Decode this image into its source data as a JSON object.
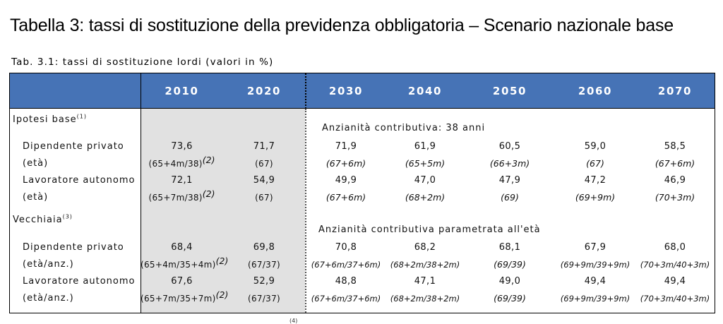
{
  "title": "Tabella 3: tassi di sostituzione della previdenza obbligatoria – Scenario nazionale base",
  "subtitle": "Tab. 3.1: tassi di sostituzione lordi (valori in %)",
  "header": {
    "years": [
      "2010",
      "2020",
      "2030",
      "2040",
      "2050",
      "2060",
      "2070"
    ]
  },
  "sections": [
    {
      "label": "Ipotesi base",
      "label_sup": "(1)",
      "note": "Anzianità contributiva: 38 anni",
      "rows": [
        {
          "label": "Dipendente privato",
          "values": [
            "73,6",
            "71,7",
            "71,9",
            "61,9",
            "60,5",
            "59,0",
            "58,5"
          ]
        },
        {
          "label": "(età)",
          "values": [
            "(65+4m/38)",
            "(67)",
            "(67+6m)",
            "(65+5m)",
            "(66+3m)",
            "(67)",
            "(67+6m)"
          ],
          "sup": "(2)"
        },
        {
          "label": "Lavoratore autonomo",
          "values": [
            "72,1",
            "54,9",
            "49,9",
            "47,0",
            "47,9",
            "47,2",
            "46,9"
          ]
        },
        {
          "label": "(età)",
          "values": [
            "(65+7m/38)",
            "(67)",
            "(67+6m)",
            "(68+2m)",
            "(69)",
            "(69+9m)",
            "(70+3m)"
          ],
          "sup": "(2)"
        }
      ]
    },
    {
      "label": "Vecchiaia",
      "label_sup": "(3)",
      "note": "Anzianità contributiva parametrata all'età",
      "rows": [
        {
          "label": "Dipendente privato",
          "values": [
            "68,4",
            "69,8",
            "70,8",
            "68,2",
            "68,1",
            "67,9",
            "68,0"
          ]
        },
        {
          "label": "(età/anz.)",
          "values": [
            "(65+4m/35+4m)",
            "(67/37)",
            "(67+6m/37+6m)",
            "(68+2m/38+2m)",
            "(69/39)",
            "(69+9m/39+9m)",
            "(70+3m/40+3m)"
          ],
          "sup": "(2)"
        },
        {
          "label": "Lavoratore autonomo",
          "values": [
            "67,6",
            "52,9",
            "48,8",
            "47,1",
            "49,0",
            "49,4",
            "49,4"
          ]
        },
        {
          "label": "(età/anz.)",
          "values": [
            "(65+7m/35+7m)",
            "(67/37)",
            "(67+6m/37+6m)",
            "(68+2m/38+2m)",
            "(69/39)",
            "(69+9m/39+9m)",
            "(70+3m/40+3m)"
          ],
          "sup": "(2)"
        }
      ]
    }
  ],
  "footnote_fragment": "(4)"
}
